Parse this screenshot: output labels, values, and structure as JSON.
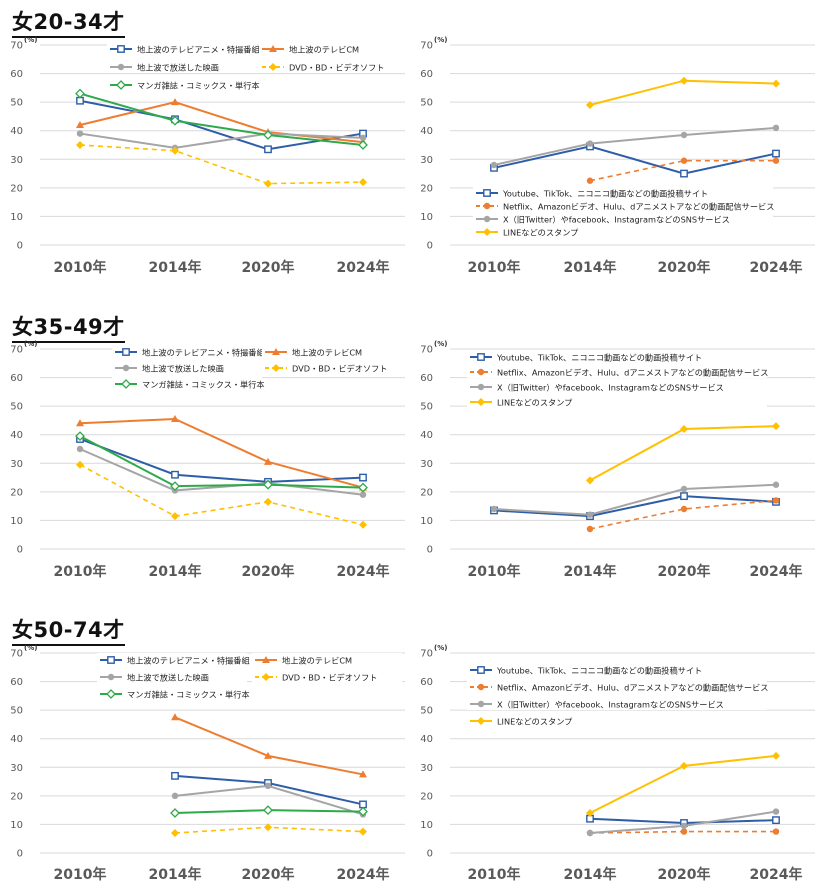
{
  "panel_titles": [
    "女20-34才",
    "女35-49才",
    "女50-74才"
  ],
  "legend_left": [
    "地上波のテレビアニメ・特撮番組",
    "地上波のテレビCM",
    "地上波で放送した映画",
    "DVD・BD・ビデオソフト",
    "マンガ雑誌・コミックス・単行本"
  ],
  "legend_right": [
    "Youtube、TikTok、ニコニコ動画などの動画投稿サイト",
    "Netflix、Amazonビデオ、Hulu、dアニメストアなどの動画配信サービス",
    "X（旧Twitter）やfacebook、InstagramなどのSNSサービス",
    "LINEなどのスタンプ"
  ],
  "unit_label": "(%)",
  "colors": {
    "blue": "#2e5ea8",
    "orange": "#ed7d31",
    "gray": "#a5a5a5",
    "yellow": "#ffc000",
    "green": "#2eaa4a",
    "grid": "#d9d9d9",
    "axis_text": "#595959"
  },
  "chart_data": [
    {
      "type": "line",
      "group": "女20-34才",
      "title": "女20-34才",
      "categories": [
        "2010年",
        "2014年",
        "2020年",
        "2024年"
      ],
      "ylim": [
        0,
        70
      ],
      "yticks": [
        0,
        10,
        20,
        30,
        40,
        50,
        60,
        70
      ],
      "ylabel": "(%)",
      "grid": true,
      "series": [
        {
          "name": "地上波のテレビアニメ・特撮番組",
          "values": [
            50.5,
            44,
            33.5,
            39
          ]
        },
        {
          "name": "地上波のテレビCM",
          "values": [
            42,
            50,
            39.5,
            36
          ]
        },
        {
          "name": "地上波で放送した映画",
          "values": [
            39,
            34,
            39,
            37.5
          ]
        },
        {
          "name": "DVD・BD・ビデオソフト",
          "values": [
            35,
            33,
            21.5,
            22
          ]
        },
        {
          "name": "マンガ雑誌・コミックス・単行本",
          "values": [
            53,
            43.5,
            38.5,
            35
          ]
        }
      ]
    },
    {
      "type": "line",
      "group": "女20-34才",
      "categories": [
        "2010年",
        "2014年",
        "2020年",
        "2024年"
      ],
      "ylim": [
        0,
        70
      ],
      "yticks": [
        0,
        10,
        20,
        30,
        40,
        50,
        60,
        70
      ],
      "ylabel": "(%)",
      "grid": true,
      "series": [
        {
          "name": "Youtube、TikTok、ニコニコ動画などの動画投稿サイト",
          "values": [
            27,
            34.5,
            25,
            32
          ]
        },
        {
          "name": "Netflix、Amazonビデオ、Hulu、dアニメストアなどの動画配信サービス",
          "values": [
            null,
            22.5,
            29.5,
            29.5
          ]
        },
        {
          "name": "X（旧Twitter）やfacebook、InstagramなどのSNSサービス",
          "values": [
            28,
            35.5,
            38.5,
            41
          ]
        },
        {
          "name": "LINEなどのスタンプ",
          "values": [
            null,
            49,
            57.5,
            56.5
          ]
        }
      ]
    },
    {
      "type": "line",
      "group": "女35-49才",
      "title": "女35-49才",
      "categories": [
        "2010年",
        "2014年",
        "2020年",
        "2024年"
      ],
      "ylim": [
        0,
        70
      ],
      "yticks": [
        0,
        10,
        20,
        30,
        40,
        50,
        60,
        70
      ],
      "ylabel": "(%)",
      "grid": true,
      "series": [
        {
          "name": "地上波のテレビアニメ・特撮番組",
          "values": [
            38.5,
            26,
            23.5,
            25
          ]
        },
        {
          "name": "地上波のテレビCM",
          "values": [
            44,
            45.5,
            30.5,
            21.5
          ]
        },
        {
          "name": "地上波で放送した映画",
          "values": [
            35,
            20.5,
            23,
            19
          ]
        },
        {
          "name": "DVD・BD・ビデオソフト",
          "values": [
            29.5,
            11.5,
            16.5,
            8.5
          ]
        },
        {
          "name": "マンガ雑誌・コミックス・単行本",
          "values": [
            39.5,
            22,
            22.5,
            21.5
          ]
        }
      ]
    },
    {
      "type": "line",
      "group": "女35-49才",
      "categories": [
        "2010年",
        "2014年",
        "2020年",
        "2024年"
      ],
      "ylim": [
        0,
        70
      ],
      "yticks": [
        0,
        10,
        20,
        30,
        40,
        50,
        60,
        70
      ],
      "ylabel": "(%)",
      "grid": true,
      "series": [
        {
          "name": "Youtube、TikTok、ニコニコ動画などの動画投稿サイト",
          "values": [
            13.5,
            11.5,
            18.5,
            16.5
          ]
        },
        {
          "name": "Netflix、Amazonビデオ、Hulu、dアニメストアなどの動画配信サービス",
          "values": [
            null,
            7,
            14,
            17
          ]
        },
        {
          "name": "X（旧Twitter）やfacebook、InstagramなどのSNSサービス",
          "values": [
            14,
            12,
            21,
            22.5
          ]
        },
        {
          "name": "LINEなどのスタンプ",
          "values": [
            null,
            24,
            42,
            43
          ]
        }
      ]
    },
    {
      "type": "line",
      "group": "女50-74才",
      "title": "女50-74才",
      "categories": [
        "2010年",
        "2014年",
        "2020年",
        "2024年"
      ],
      "ylim": [
        0,
        70
      ],
      "yticks": [
        0,
        10,
        20,
        30,
        40,
        50,
        60,
        70
      ],
      "ylabel": "(%)",
      "grid": true,
      "series": [
        {
          "name": "地上波のテレビアニメ・特撮番組",
          "values": [
            null,
            27,
            24.5,
            17
          ]
        },
        {
          "name": "地上波のテレビCM",
          "values": [
            null,
            47.5,
            34,
            27.5
          ]
        },
        {
          "name": "地上波で放送した映画",
          "values": [
            null,
            20,
            23.5,
            13.5
          ]
        },
        {
          "name": "DVD・BD・ビデオソフト",
          "values": [
            null,
            7,
            9,
            7.5
          ]
        },
        {
          "name": "マンガ雑誌・コミックス・単行本",
          "values": [
            null,
            14,
            15,
            14.5
          ]
        }
      ]
    },
    {
      "type": "line",
      "group": "女50-74才",
      "categories": [
        "2010年",
        "2014年",
        "2020年",
        "2024年"
      ],
      "ylim": [
        0,
        70
      ],
      "yticks": [
        0,
        10,
        20,
        30,
        40,
        50,
        60,
        70
      ],
      "ylabel": "(%)",
      "grid": true,
      "series": [
        {
          "name": "Youtube、TikTok、ニコニコ動画などの動画投稿サイト",
          "values": [
            null,
            12,
            10.5,
            11.5
          ]
        },
        {
          "name": "Netflix、Amazonビデオ、Hulu、dアニメストアなどの動画配信サービス",
          "values": [
            null,
            7,
            7.5,
            7.5
          ]
        },
        {
          "name": "X（旧Twitter）やfacebook、InstagramなどのSNSサービス",
          "values": [
            null,
            7,
            9.5,
            14.5
          ]
        },
        {
          "name": "LINEなどのスタンプ",
          "values": [
            null,
            14,
            30.5,
            34
          ]
        }
      ]
    }
  ]
}
